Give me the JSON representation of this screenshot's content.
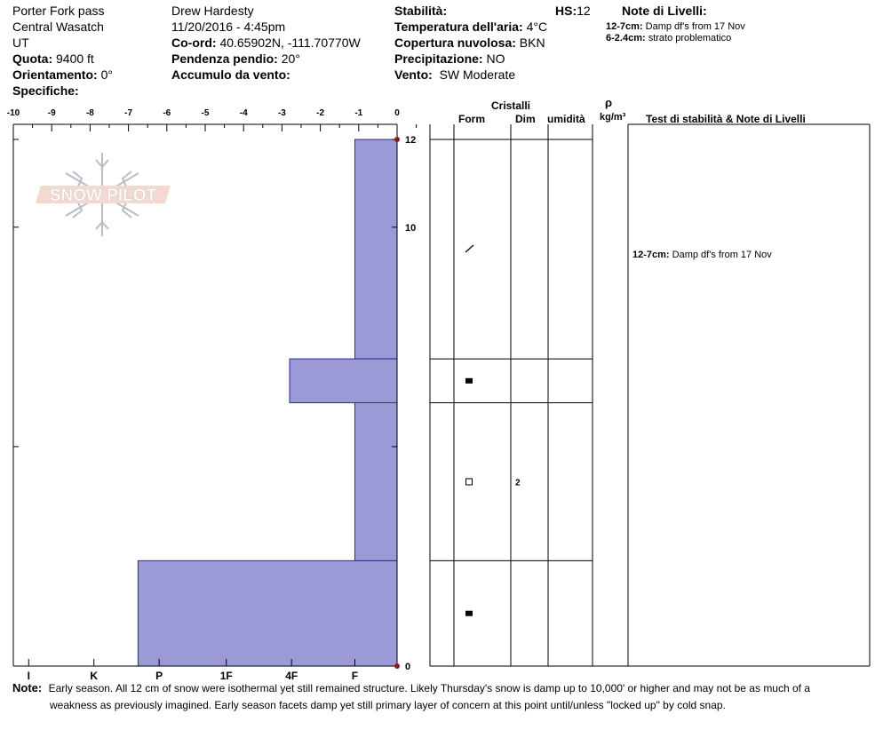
{
  "header": {
    "location": "Porter Fork pass",
    "range": "Central Wasatch",
    "state": "UT",
    "observer": "Drew Hardesty",
    "datetime": "11/20/2016 - 4:45pm",
    "elevation_label": "Quota:",
    "elevation_value": "9400 ft",
    "aspect_label": "Orientamento:",
    "aspect_value": "0°",
    "specifics_label": "Specifiche:",
    "coords_label": "Co-ord:",
    "coords_value": "40.65902N, -111.70770W",
    "slope_label": "Pendenza pendio:",
    "slope_value": "20°",
    "wind_loading_label": "Accumulo da vento:",
    "stability_label": "Stabilità:",
    "air_temp_label": "Temperatura dell'aria:",
    "air_temp_value": "4°C",
    "sky_label": "Copertura nuvolosa:",
    "sky_value": "BKN",
    "precip_label": "Precipitazione:",
    "precip_value": "NO",
    "wind_label": "Vento:",
    "wind_value": "SW Moderate",
    "hs_label": "HS:",
    "hs_value": "12",
    "layer_notes_title": "Note di Livelli:",
    "layer_notes": [
      {
        "range": "12-7cm:",
        "text": "Damp df's from 17 Nov"
      },
      {
        "range": "6-2.4cm:",
        "text": "strato problematico"
      }
    ]
  },
  "logo_text": "SNOW PILOT",
  "columns": {
    "crystals": "Cristalli",
    "form": "Form",
    "size": "Dim",
    "moisture": "umidità",
    "rho": "ρ",
    "density_unit": "kg/m³",
    "tests": "Test di stabilità & Note di Livelli"
  },
  "layer_table": [
    {
      "top": 12,
      "bottom": 7,
      "form": "/",
      "size": "",
      "note_range": "12-7cm:",
      "note_text": "Damp df's from 17 Nov"
    },
    {
      "top": 7,
      "bottom": 6,
      "form": "■",
      "size": "",
      "note_range": "",
      "note_text": ""
    },
    {
      "top": 6,
      "bottom": 2.4,
      "form": "□",
      "size": "2",
      "note_range": "",
      "note_text": ""
    },
    {
      "top": 2.4,
      "bottom": 0,
      "form": "■",
      "size": "",
      "note_range": "",
      "note_text": ""
    }
  ],
  "chart_data": {
    "type": "bar",
    "orientation": "horizontal",
    "top_axis_ticks": [
      "-10",
      "-9",
      "-8",
      "-7",
      "-6",
      "-5",
      "-4",
      "-3",
      "-2",
      "-1",
      "0"
    ],
    "top_axis_range": [
      -10,
      0
    ],
    "bottom_axis_ticks": [
      "I",
      "K",
      "P",
      "1F",
      "4F",
      "F"
    ],
    "bottom_axis_values": [
      -9.6,
      -7.9,
      -6.2,
      -4.45,
      -2.75,
      -1.1
    ],
    "height_ticks": [
      "12",
      "10",
      "0"
    ],
    "height_range": [
      0,
      12
    ],
    "series": [
      {
        "values": [
          {
            "top": 12,
            "bottom": 7,
            "hardness_extent": -1.1
          },
          {
            "top": 7,
            "bottom": 6,
            "hardness_extent": -2.8
          },
          {
            "top": 6,
            "bottom": 2.4,
            "hardness_extent": -1.1
          },
          {
            "top": 2.4,
            "bottom": 0,
            "hardness_extent": -6.75
          }
        ]
      }
    ],
    "bar_color": "#9c9ad6",
    "grid": false
  },
  "footer": {
    "note_label": "Note:",
    "note_line1": "Early season.  All 12 cm of snow were isothermal yet still remained structure.  Likely Thursday's snow is damp up to 10,000' or higher and may not be as much of a",
    "note_line2": "weakness as previously imagined.  Early season facets damp yet still primary layer of concern at this point until/unless \"locked up\" by cold snap."
  }
}
